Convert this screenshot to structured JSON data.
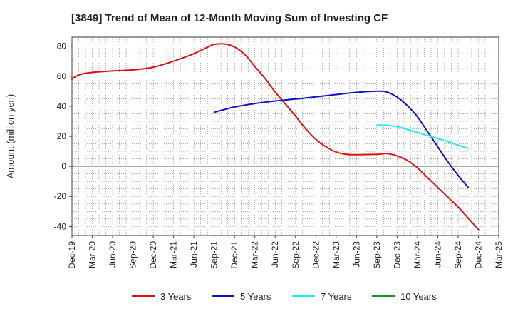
{
  "chart_data": {
    "type": "line",
    "title": "[3849]  Trend of Mean of 12-Month Moving Sum of Investing CF",
    "xlabel": "",
    "ylabel": "Amount (million yen)",
    "ylim": [
      -46,
      86
    ],
    "yticks": [
      80,
      60,
      40,
      20,
      0,
      -20,
      -40
    ],
    "grid": true,
    "legend_position": "bottom",
    "categories": [
      "Dec-19",
      "Mar-20",
      "Jun-20",
      "Sep-20",
      "Dec-20",
      "Mar-21",
      "Jun-21",
      "Sep-21",
      "Dec-21",
      "Mar-22",
      "Jun-22",
      "Sep-22",
      "Dec-22",
      "Mar-23",
      "Jun-23",
      "Sep-23",
      "Dec-23",
      "Mar-24",
      "Jun-24",
      "Sep-24",
      "Dec-24",
      "Mar-25"
    ],
    "series": [
      {
        "name": "3 Years",
        "color": "#dd1111",
        "points": [
          [
            0,
            58
          ],
          [
            0.2,
            60
          ],
          [
            0.5,
            61.5
          ],
          [
            1,
            62.5
          ],
          [
            2,
            63.5
          ],
          [
            3,
            64.2
          ],
          [
            4,
            66
          ],
          [
            5,
            70
          ],
          [
            6,
            75
          ],
          [
            6.7,
            79.5
          ],
          [
            7,
            81.2
          ],
          [
            7.5,
            81.5
          ],
          [
            8,
            79.5
          ],
          [
            8.5,
            74.5
          ],
          [
            9,
            66.5
          ],
          [
            9.5,
            58.5
          ],
          [
            10,
            49.5
          ],
          [
            10.5,
            41.5
          ],
          [
            11,
            33.5
          ],
          [
            11.5,
            25
          ],
          [
            12,
            18
          ],
          [
            12.5,
            13
          ],
          [
            13,
            9.5
          ],
          [
            13.5,
            8
          ],
          [
            14,
            7.8
          ],
          [
            15,
            8
          ],
          [
            15.5,
            8.5
          ],
          [
            16,
            7
          ],
          [
            16.5,
            4
          ],
          [
            17,
            -1
          ],
          [
            17.5,
            -7.5
          ],
          [
            18,
            -14
          ],
          [
            18.5,
            -20.5
          ],
          [
            19,
            -27
          ],
          [
            19.5,
            -34.5
          ],
          [
            20,
            -42
          ]
        ]
      },
      {
        "name": "5 Years",
        "color": "#1111cc",
        "points": [
          [
            7,
            36
          ],
          [
            7.5,
            37.8
          ],
          [
            8,
            39.5
          ],
          [
            9,
            41.8
          ],
          [
            10,
            43.5
          ],
          [
            11,
            44.8
          ],
          [
            12,
            46.2
          ],
          [
            13,
            47.8
          ],
          [
            14,
            49.2
          ],
          [
            15,
            50
          ],
          [
            15.5,
            49.5
          ],
          [
            16,
            46
          ],
          [
            16.5,
            40.5
          ],
          [
            17,
            33
          ],
          [
            17.5,
            23
          ],
          [
            18,
            13
          ],
          [
            18.5,
            3
          ],
          [
            19,
            -6
          ],
          [
            19.5,
            -14
          ]
        ]
      },
      {
        "name": "7 Years",
        "color": "#22eeee",
        "points": [
          [
            15,
            27.5
          ],
          [
            15.5,
            27.3
          ],
          [
            16,
            26.5
          ],
          [
            16.5,
            24.5
          ],
          [
            17,
            22.5
          ],
          [
            17.5,
            20.5
          ],
          [
            18,
            18.5
          ],
          [
            18.5,
            16.5
          ],
          [
            19,
            14
          ],
          [
            19.5,
            12
          ]
        ]
      },
      {
        "name": "10 Years",
        "color": "#228822",
        "points": []
      }
    ]
  }
}
